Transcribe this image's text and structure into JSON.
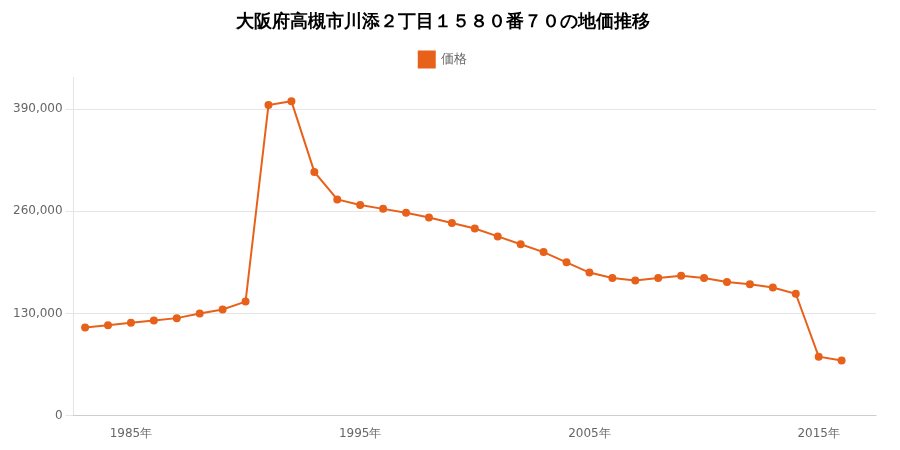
{
  "chart_data": {
    "type": "line",
    "title": "大阪府高槻市川添２丁目１５８０番７０の地価推移",
    "x": [
      1983,
      1984,
      1985,
      1986,
      1987,
      1988,
      1989,
      1990,
      1991,
      1992,
      1993,
      1994,
      1995,
      1996,
      1997,
      1998,
      1999,
      2000,
      2001,
      2002,
      2003,
      2004,
      2005,
      2006,
      2007,
      2008,
      2009,
      2010,
      2011,
      2012,
      2013,
      2014,
      2015,
      2016
    ],
    "series": [
      {
        "name": "価格",
        "color": "#e8611a",
        "marker": "circle",
        "values": [
          112000,
          115000,
          118000,
          121000,
          124000,
          130000,
          135000,
          145000,
          395000,
          400000,
          310000,
          275000,
          268000,
          263000,
          258000,
          252000,
          245000,
          238000,
          228000,
          218000,
          208000,
          195000,
          182000,
          175000,
          172000,
          175000,
          178000,
          175000,
          170000,
          167000,
          163000,
          155000,
          75000,
          70000
        ]
      }
    ],
    "xlim": [
      1982.5,
      2017.5
    ],
    "xticks": [
      {
        "value": 1985,
        "label": "1985年"
      },
      {
        "value": 1995,
        "label": "1995年"
      },
      {
        "value": 2005,
        "label": "2005年"
      },
      {
        "value": 2015,
        "label": "2015年"
      }
    ],
    "ylim": [
      0,
      430000
    ],
    "yticks": [
      0,
      {
        "value": 130000,
        "label": "130,000"
      },
      {
        "value": 260000,
        "label": "260,000"
      },
      {
        "value": 390000,
        "label": "390,000"
      }
    ],
    "grid": "y",
    "legend": "top"
  }
}
